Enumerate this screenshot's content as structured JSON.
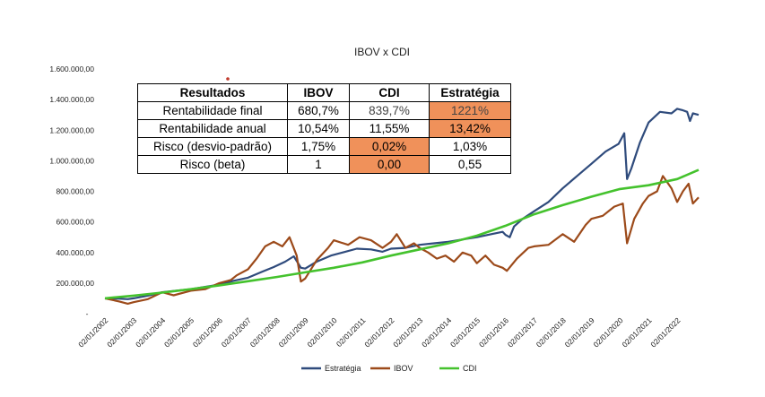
{
  "chart_data": {
    "type": "line",
    "title": "IBOV x CDI",
    "xlabel": "",
    "ylabel": "",
    "x_ticks": [
      "02/01/2002",
      "02/01/2003",
      "02/01/2004",
      "02/01/2005",
      "02/01/2006",
      "02/01/2007",
      "02/01/2008",
      "02/01/2009",
      "02/01/2010",
      "02/01/2011",
      "02/01/2012",
      "02/01/2013",
      "02/01/2014",
      "02/01/2015",
      "02/01/2016",
      "02/01/2017",
      "02/01/2018",
      "02/01/2019",
      "02/01/2020",
      "02/01/2021",
      "02/01/2022"
    ],
    "y_ticks": [
      "-",
      "200.000,00",
      "400.000,00",
      "600.000,00",
      "800.000,00",
      "1.000.000,00",
      "1.200.000,00",
      "1.400.000,00",
      "1.600.000,00"
    ],
    "ylim": [
      0,
      1600000
    ],
    "xlim": [
      2002.0,
      2022.75
    ],
    "grid": false,
    "legend_position": "bottom",
    "series": [
      {
        "name": "Estratégia",
        "color": "#2f4b7c",
        "points": [
          [
            2002.0,
            100000
          ],
          [
            2002.5,
            98000
          ],
          [
            2002.8,
            95000
          ],
          [
            2003.0,
            100000
          ],
          [
            2003.5,
            118000
          ],
          [
            2004.0,
            140000
          ],
          [
            2004.5,
            150000
          ],
          [
            2005.0,
            160000
          ],
          [
            2005.5,
            175000
          ],
          [
            2006.0,
            190000
          ],
          [
            2006.5,
            215000
          ],
          [
            2007.0,
            235000
          ],
          [
            2007.5,
            275000
          ],
          [
            2007.9,
            305000
          ],
          [
            2008.3,
            340000
          ],
          [
            2008.6,
            375000
          ],
          [
            2008.85,
            300000
          ],
          [
            2009.0,
            295000
          ],
          [
            2009.4,
            340000
          ],
          [
            2009.9,
            380000
          ],
          [
            2010.3,
            400000
          ],
          [
            2010.8,
            425000
          ],
          [
            2011.3,
            420000
          ],
          [
            2011.7,
            405000
          ],
          [
            2012.0,
            425000
          ],
          [
            2012.5,
            430000
          ],
          [
            2013.0,
            450000
          ],
          [
            2013.5,
            460000
          ],
          [
            2014.0,
            470000
          ],
          [
            2014.5,
            485000
          ],
          [
            2015.0,
            500000
          ],
          [
            2015.5,
            520000
          ],
          [
            2015.9,
            535000
          ],
          [
            2016.0,
            515000
          ],
          [
            2016.15,
            500000
          ],
          [
            2016.3,
            570000
          ],
          [
            2016.6,
            620000
          ],
          [
            2017.0,
            670000
          ],
          [
            2017.5,
            730000
          ],
          [
            2018.0,
            820000
          ],
          [
            2018.5,
            900000
          ],
          [
            2019.0,
            980000
          ],
          [
            2019.5,
            1060000
          ],
          [
            2019.95,
            1110000
          ],
          [
            2020.15,
            1180000
          ],
          [
            2020.25,
            880000
          ],
          [
            2020.4,
            950000
          ],
          [
            2020.7,
            1120000
          ],
          [
            2021.0,
            1250000
          ],
          [
            2021.4,
            1320000
          ],
          [
            2021.8,
            1310000
          ],
          [
            2022.0,
            1340000
          ],
          [
            2022.2,
            1330000
          ],
          [
            2022.35,
            1320000
          ],
          [
            2022.45,
            1260000
          ],
          [
            2022.55,
            1310000
          ],
          [
            2022.75,
            1300000
          ]
        ]
      },
      {
        "name": "IBOV",
        "color": "#9c4a1a",
        "points": [
          [
            2002.0,
            100000
          ],
          [
            2002.5,
            80000
          ],
          [
            2002.8,
            65000
          ],
          [
            2003.0,
            75000
          ],
          [
            2003.5,
            95000
          ],
          [
            2004.0,
            140000
          ],
          [
            2004.4,
            120000
          ],
          [
            2005.0,
            150000
          ],
          [
            2005.5,
            160000
          ],
          [
            2006.0,
            200000
          ],
          [
            2006.4,
            220000
          ],
          [
            2006.6,
            250000
          ],
          [
            2007.0,
            290000
          ],
          [
            2007.3,
            360000
          ],
          [
            2007.6,
            440000
          ],
          [
            2007.9,
            470000
          ],
          [
            2008.2,
            440000
          ],
          [
            2008.45,
            500000
          ],
          [
            2008.7,
            380000
          ],
          [
            2008.85,
            210000
          ],
          [
            2009.0,
            230000
          ],
          [
            2009.4,
            350000
          ],
          [
            2009.8,
            430000
          ],
          [
            2010.0,
            480000
          ],
          [
            2010.5,
            450000
          ],
          [
            2010.9,
            500000
          ],
          [
            2011.3,
            480000
          ],
          [
            2011.7,
            430000
          ],
          [
            2012.0,
            470000
          ],
          [
            2012.2,
            520000
          ],
          [
            2012.5,
            430000
          ],
          [
            2012.8,
            460000
          ],
          [
            2013.0,
            430000
          ],
          [
            2013.3,
            400000
          ],
          [
            2013.6,
            360000
          ],
          [
            2013.9,
            380000
          ],
          [
            2014.2,
            340000
          ],
          [
            2014.5,
            400000
          ],
          [
            2014.8,
            380000
          ],
          [
            2015.0,
            330000
          ],
          [
            2015.3,
            380000
          ],
          [
            2015.6,
            320000
          ],
          [
            2015.9,
            300000
          ],
          [
            2016.05,
            280000
          ],
          [
            2016.4,
            360000
          ],
          [
            2016.8,
            430000
          ],
          [
            2017.0,
            440000
          ],
          [
            2017.5,
            450000
          ],
          [
            2018.0,
            520000
          ],
          [
            2018.4,
            470000
          ],
          [
            2018.8,
            580000
          ],
          [
            2019.0,
            620000
          ],
          [
            2019.4,
            640000
          ],
          [
            2019.8,
            700000
          ],
          [
            2020.1,
            720000
          ],
          [
            2020.25,
            460000
          ],
          [
            2020.5,
            620000
          ],
          [
            2020.8,
            720000
          ],
          [
            2021.0,
            770000
          ],
          [
            2021.3,
            800000
          ],
          [
            2021.5,
            900000
          ],
          [
            2021.8,
            820000
          ],
          [
            2022.0,
            730000
          ],
          [
            2022.2,
            800000
          ],
          [
            2022.4,
            850000
          ],
          [
            2022.55,
            720000
          ],
          [
            2022.75,
            760000
          ]
        ]
      },
      {
        "name": "CDI",
        "color": "#44c22d",
        "points": [
          [
            2002.0,
            100000
          ],
          [
            2003.0,
            118000
          ],
          [
            2004.0,
            138000
          ],
          [
            2005.0,
            160000
          ],
          [
            2006.0,
            185000
          ],
          [
            2007.0,
            212000
          ],
          [
            2008.0,
            240000
          ],
          [
            2009.0,
            270000
          ],
          [
            2010.0,
            300000
          ],
          [
            2011.0,
            335000
          ],
          [
            2012.0,
            380000
          ],
          [
            2013.0,
            420000
          ],
          [
            2014.0,
            460000
          ],
          [
            2015.0,
            510000
          ],
          [
            2016.0,
            575000
          ],
          [
            2017.0,
            650000
          ],
          [
            2018.0,
            710000
          ],
          [
            2019.0,
            765000
          ],
          [
            2020.0,
            815000
          ],
          [
            2021.0,
            840000
          ],
          [
            2022.0,
            880000
          ],
          [
            2022.75,
            940000
          ]
        ]
      }
    ]
  },
  "table": {
    "headers": [
      "Resultados",
      "IBOV",
      "CDI",
      "Estratégia"
    ],
    "rows": [
      [
        "Rentabilidade final",
        "680,7%",
        "839,7%",
        "1221%"
      ],
      [
        "Rentabilidade anual",
        "10,54%",
        "11,55%",
        "13,42%"
      ],
      [
        "Risco (desvio-padrão)",
        "1,75%",
        "0,02%",
        "1,03%"
      ],
      [
        "Risco (beta)",
        "1",
        "0,00",
        "0,55"
      ]
    ],
    "highlight_color": "#f0915a"
  }
}
